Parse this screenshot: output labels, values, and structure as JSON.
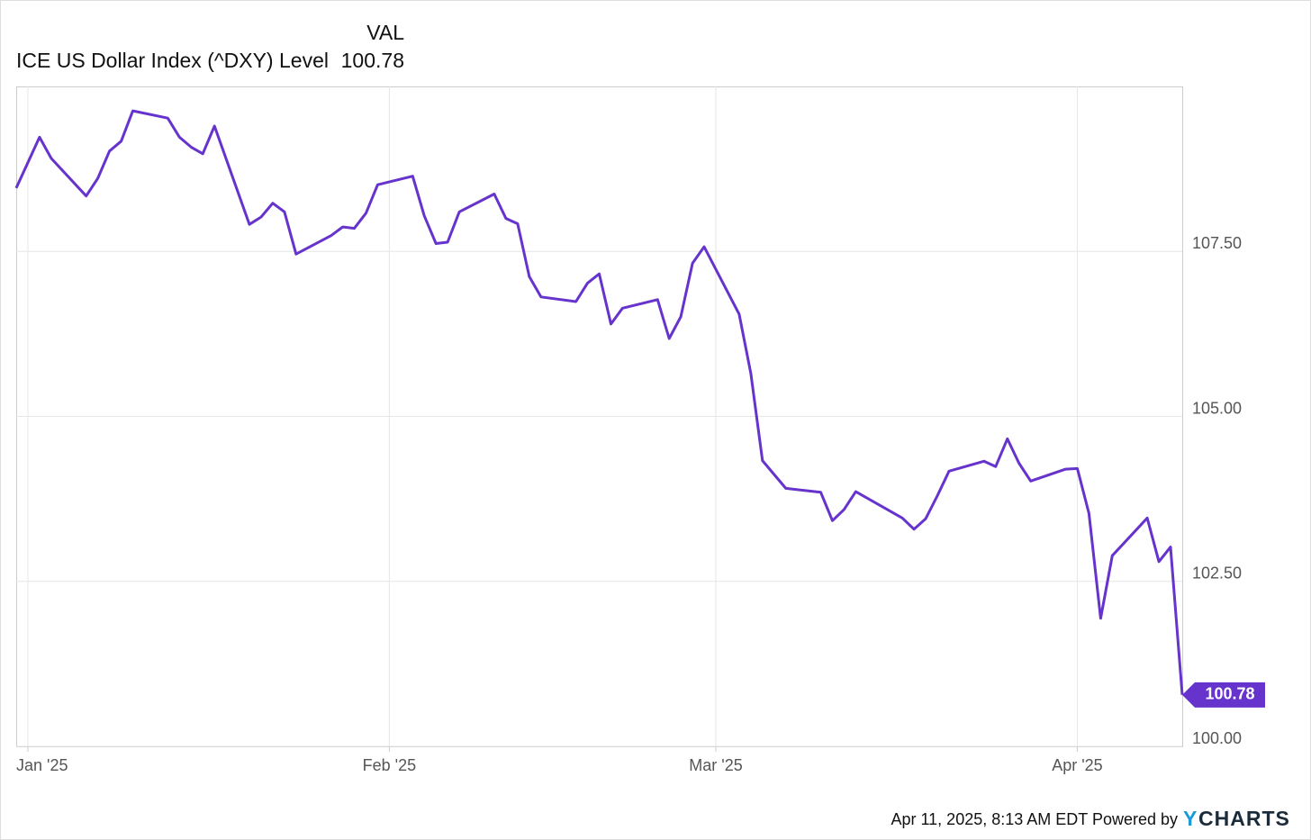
{
  "chart_data": {
    "type": "line",
    "legend_header": "VAL",
    "xlim": [
      0,
      100
    ],
    "xticks": [
      {
        "value": 1,
        "label": "Jan '25"
      },
      {
        "value": 32,
        "label": "Feb '25"
      },
      {
        "value": 60,
        "label": "Mar '25"
      },
      {
        "value": 91,
        "label": "Apr '25"
      }
    ],
    "ylim": [
      100,
      110
    ],
    "yticks": [
      {
        "value": 100,
        "label": "100.00"
      },
      {
        "value": 102.5,
        "label": "102.50"
      },
      {
        "value": 105,
        "label": "105.00"
      },
      {
        "value": 107.5,
        "label": "107.50"
      }
    ],
    "grid": true,
    "x": [
      0,
      2,
      3,
      6,
      7,
      8,
      9,
      10,
      13,
      14,
      15,
      16,
      17,
      20,
      21,
      22,
      23,
      24,
      27,
      28,
      29,
      30,
      31,
      34,
      35,
      36,
      37,
      38,
      41,
      42,
      43,
      44,
      45,
      48,
      49,
      50,
      51,
      52,
      55,
      56,
      57,
      58,
      59,
      62,
      63,
      64,
      66,
      69,
      70,
      71,
      72,
      76,
      77,
      78,
      79,
      80,
      83,
      84,
      85,
      86,
      87,
      90,
      91,
      92,
      93,
      94,
      97,
      98,
      99,
      100
    ],
    "series": [
      {
        "name": "ICE US Dollar Index (^DXY) Level",
        "color": "#6633cc",
        "values": [
          108.46,
          109.23,
          108.91,
          108.34,
          108.61,
          109.02,
          109.17,
          109.63,
          109.52,
          109.23,
          109.08,
          108.98,
          109.4,
          107.91,
          108.02,
          108.23,
          108.1,
          107.46,
          107.74,
          107.87,
          107.85,
          108.08,
          108.51,
          108.64,
          108.04,
          107.62,
          107.64,
          108.1,
          108.37,
          108.0,
          107.92,
          107.12,
          106.81,
          106.74,
          107.02,
          107.16,
          106.4,
          106.64,
          106.77,
          106.18,
          106.51,
          107.32,
          107.57,
          106.55,
          105.65,
          104.33,
          103.91,
          103.85,
          103.42,
          103.59,
          103.86,
          103.46,
          103.29,
          103.45,
          103.8,
          104.17,
          104.32,
          104.24,
          104.66,
          104.29,
          104.02,
          104.2,
          104.21,
          103.53,
          101.94,
          102.89,
          103.46,
          102.8,
          103.02,
          100.78
        ]
      }
    ],
    "footer": {
      "timestamp": "Apr 11, 2025, 8:13 AM EDT Powered by",
      "logo_mark": "Y",
      "logo_text": "CHARTS"
    }
  }
}
